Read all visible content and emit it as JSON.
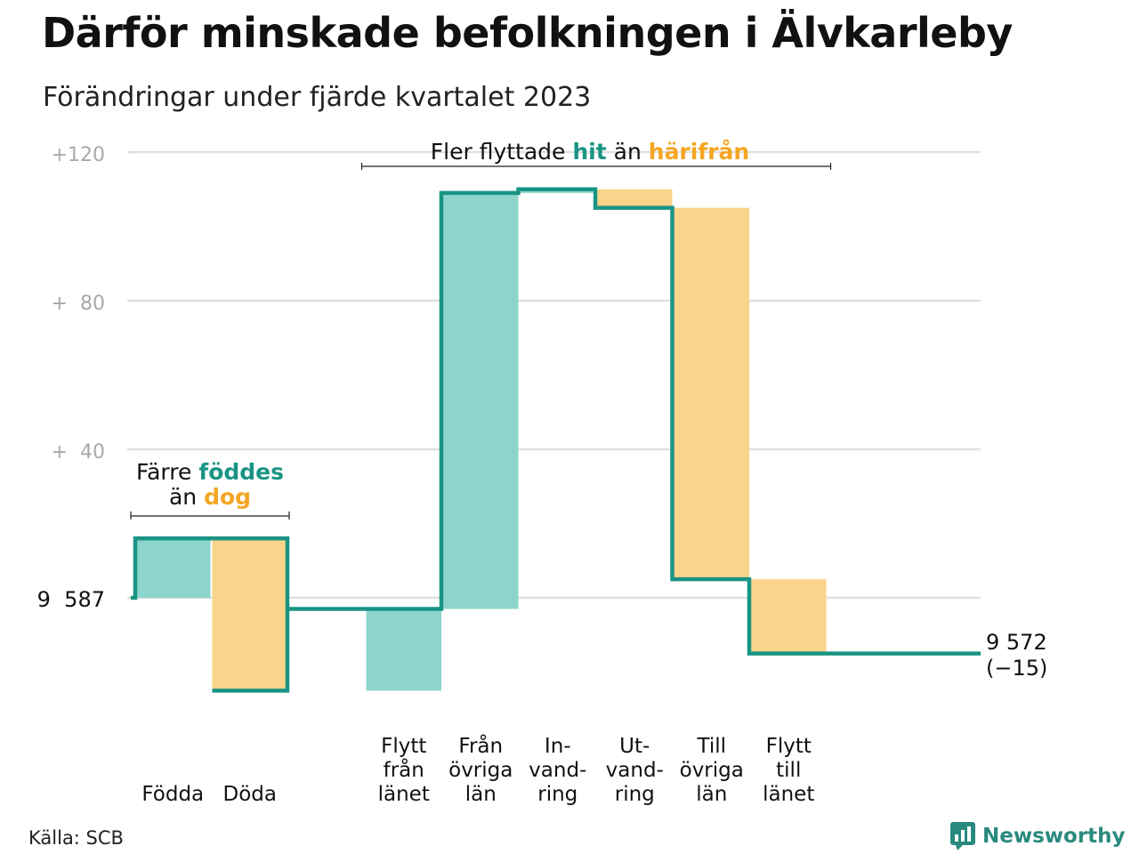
{
  "header": {
    "title": "Därför minskade befolkningen i Älvkarleby",
    "subtitle": "Förändringar under fjärde kvartalet 2023"
  },
  "footer": {
    "source": "Källa: SCB",
    "brand": "Newsworthy"
  },
  "colors": {
    "increase_fill": "#8dd5cc",
    "decrease_fill": "#f9d48b",
    "line": "#1a9484",
    "increase_text": "#1a9484",
    "decrease_text": "#f5a623",
    "grid": "#e0e0e0",
    "tick_text": "#a8a8a8",
    "brand": "#2a8a7e"
  },
  "chart_data": {
    "type": "waterfall",
    "title": "Därför minskade befolkningen i Älvkarleby",
    "subtitle": "Förändringar under fjärde kvartalet 2023",
    "start_label": "9  587",
    "end_label": [
      "9 572",
      "(−15)"
    ],
    "start_value": 0,
    "end_value": -15,
    "ylim": [
      -30,
      125
    ],
    "yticks": [
      {
        "value": 0,
        "label": "9  587"
      },
      {
        "value": 40,
        "label": "+  40"
      },
      {
        "value": 80,
        "label": "+  80"
      },
      {
        "value": 120,
        "label": "+120"
      }
    ],
    "grid": true,
    "categories": [
      {
        "lines": [
          "Födda"
        ],
        "change": 16,
        "kind": "increase",
        "gap_after": true
      },
      {
        "lines": [
          "Döda"
        ],
        "change": -41,
        "kind": "decrease",
        "gap_after": false
      },
      {
        "lines": [
          "Flytt",
          "från",
          "länet"
        ],
        "change": 22,
        "kind": "increase",
        "gap_after": false
      },
      {
        "lines": [
          "Från",
          "övriga",
          "län"
        ],
        "change": 112,
        "kind": "increase",
        "gap_after": false
      },
      {
        "lines": [
          "In-",
          "vand-",
          "ring"
        ],
        "change": 1,
        "kind": "increase",
        "gap_after": false
      },
      {
        "lines": [
          "Ut-",
          "vand-",
          "ring"
        ],
        "change": -5,
        "kind": "decrease",
        "gap_after": false
      },
      {
        "lines": [
          "Till",
          "övriga",
          "län"
        ],
        "change": -100,
        "kind": "decrease",
        "gap_after": false
      },
      {
        "lines": [
          "Flytt",
          "till",
          "länet"
        ],
        "change": -20,
        "kind": "decrease",
        "gap_after": false
      }
    ],
    "annotations": [
      {
        "segments": [
          [
            "Färre ",
            "normal"
          ],
          [
            "föddes",
            "increase"
          ]
        ],
        "segments2": [
          [
            "än ",
            "normal"
          ],
          [
            "dog",
            "decrease"
          ]
        ],
        "from_index": 0,
        "to_index": 1
      },
      {
        "segments": [
          [
            "Fler flyttade ",
            "normal"
          ],
          [
            "hit",
            "increase"
          ],
          [
            " än ",
            "normal"
          ],
          [
            "härifrån",
            "decrease"
          ]
        ],
        "from_index": 2,
        "to_index": 7
      }
    ]
  }
}
